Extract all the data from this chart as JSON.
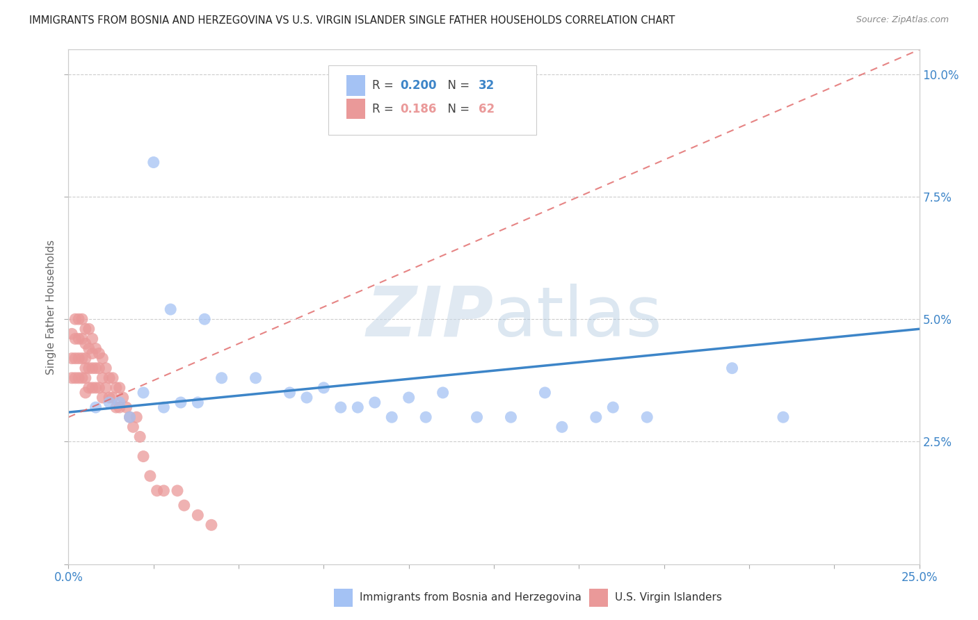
{
  "title": "IMMIGRANTS FROM BOSNIA AND HERZEGOVINA VS U.S. VIRGIN ISLANDER SINGLE FATHER HOUSEHOLDS CORRELATION CHART",
  "source": "Source: ZipAtlas.com",
  "ylabel": "Single Father Households",
  "xlim": [
    0.0,
    0.25
  ],
  "ylim": [
    0.0,
    0.105
  ],
  "xticks": [
    0.0,
    0.025,
    0.05,
    0.075,
    0.1,
    0.125,
    0.15,
    0.175,
    0.2,
    0.225,
    0.25
  ],
  "yticks": [
    0.0,
    0.025,
    0.05,
    0.075,
    0.1
  ],
  "ytick_labels": [
    "",
    "2.5%",
    "5.0%",
    "7.5%",
    "10.0%"
  ],
  "legend_blue_R": "0.200",
  "legend_blue_N": "32",
  "legend_pink_R": "0.186",
  "legend_pink_N": "62",
  "legend_blue_label": "Immigrants from Bosnia and Herzegovina",
  "legend_pink_label": "U.S. Virgin Islanders",
  "blue_color": "#a4c2f4",
  "pink_color": "#ea9999",
  "blue_line_color": "#3d85c8",
  "pink_line_color": "#e06666",
  "watermark_zip": "ZIP",
  "watermark_atlas": "atlas",
  "background_color": "#ffffff",
  "grid_color": "#cccccc",
  "blue_scatter_x": [
    0.025,
    0.03,
    0.04,
    0.045,
    0.055,
    0.065,
    0.07,
    0.075,
    0.08,
    0.085,
    0.09,
    0.095,
    0.1,
    0.105,
    0.11,
    0.12,
    0.13,
    0.14,
    0.145,
    0.155,
    0.16,
    0.17,
    0.008,
    0.012,
    0.015,
    0.018,
    0.022,
    0.028,
    0.033,
    0.038,
    0.195,
    0.21
  ],
  "blue_scatter_y": [
    0.082,
    0.052,
    0.05,
    0.038,
    0.038,
    0.035,
    0.034,
    0.036,
    0.032,
    0.032,
    0.033,
    0.03,
    0.034,
    0.03,
    0.035,
    0.03,
    0.03,
    0.035,
    0.028,
    0.03,
    0.032,
    0.03,
    0.032,
    0.033,
    0.033,
    0.03,
    0.035,
    0.032,
    0.033,
    0.033,
    0.04,
    0.03
  ],
  "pink_scatter_x": [
    0.001,
    0.001,
    0.001,
    0.002,
    0.002,
    0.002,
    0.002,
    0.003,
    0.003,
    0.003,
    0.003,
    0.004,
    0.004,
    0.004,
    0.004,
    0.005,
    0.005,
    0.005,
    0.005,
    0.005,
    0.005,
    0.006,
    0.006,
    0.006,
    0.006,
    0.007,
    0.007,
    0.007,
    0.007,
    0.008,
    0.008,
    0.008,
    0.009,
    0.009,
    0.009,
    0.01,
    0.01,
    0.01,
    0.011,
    0.011,
    0.012,
    0.012,
    0.013,
    0.013,
    0.014,
    0.014,
    0.015,
    0.015,
    0.016,
    0.017,
    0.018,
    0.019,
    0.02,
    0.021,
    0.022,
    0.024,
    0.026,
    0.028,
    0.032,
    0.034,
    0.038,
    0.042
  ],
  "pink_scatter_y": [
    0.047,
    0.042,
    0.038,
    0.05,
    0.046,
    0.042,
    0.038,
    0.05,
    0.046,
    0.042,
    0.038,
    0.05,
    0.046,
    0.042,
    0.038,
    0.048,
    0.045,
    0.042,
    0.04,
    0.038,
    0.035,
    0.048,
    0.044,
    0.04,
    0.036,
    0.046,
    0.043,
    0.04,
    0.036,
    0.044,
    0.04,
    0.036,
    0.043,
    0.04,
    0.036,
    0.042,
    0.038,
    0.034,
    0.04,
    0.036,
    0.038,
    0.034,
    0.038,
    0.034,
    0.036,
    0.032,
    0.036,
    0.032,
    0.034,
    0.032,
    0.03,
    0.028,
    0.03,
    0.026,
    0.022,
    0.018,
    0.015,
    0.015,
    0.015,
    0.012,
    0.01,
    0.008
  ],
  "blue_line_x0": 0.0,
  "blue_line_y0": 0.031,
  "blue_line_x1": 0.25,
  "blue_line_y1": 0.048,
  "pink_line_x0": 0.0,
  "pink_line_y0": 0.03,
  "pink_line_x1": 0.25,
  "pink_line_y1": 0.105
}
